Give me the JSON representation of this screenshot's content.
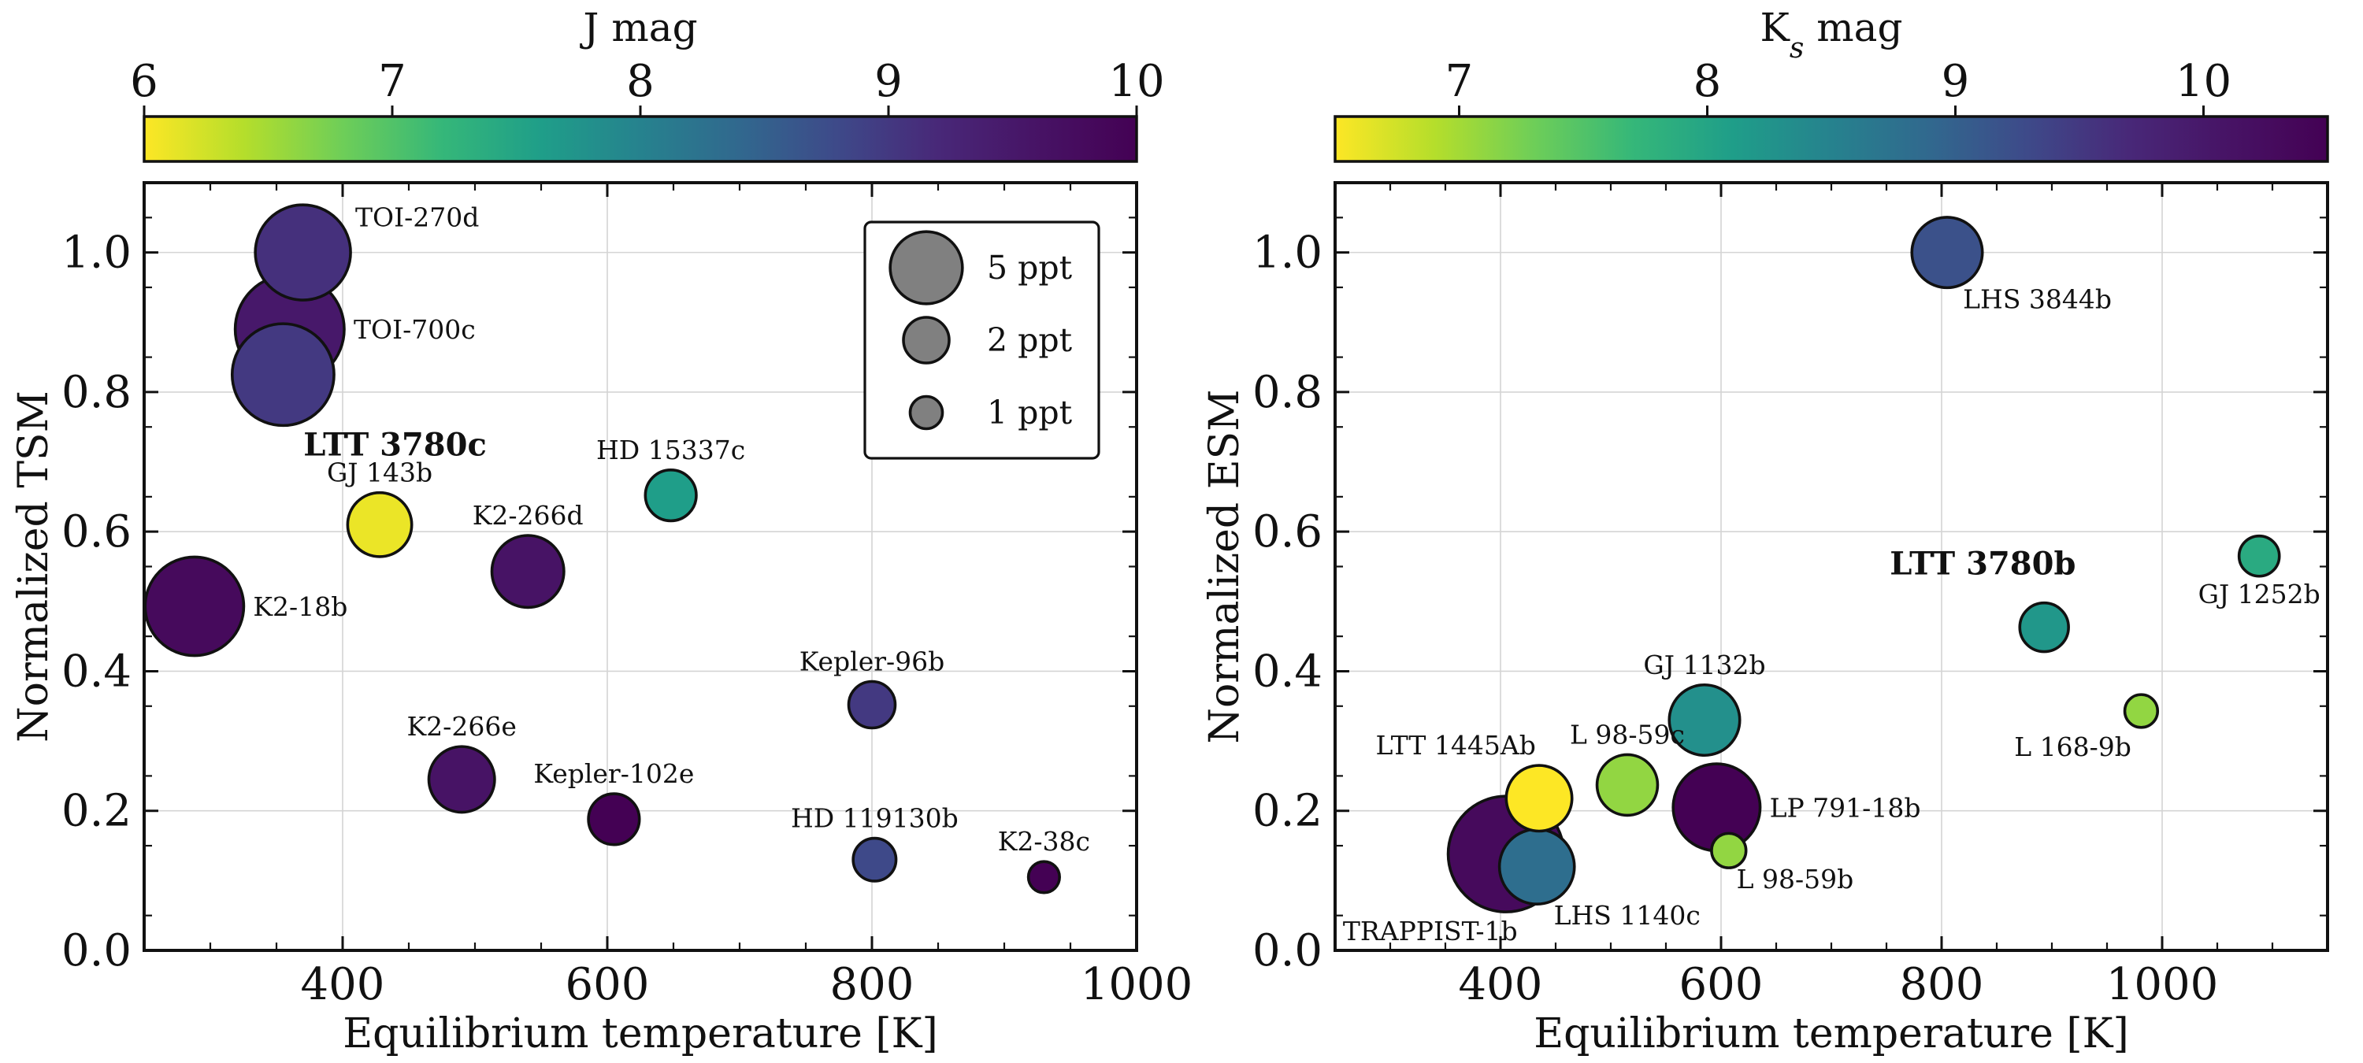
{
  "chart_data": [
    {
      "type": "scatter",
      "panel": "left",
      "xlabel": "Equilibrium temperature [K]",
      "ylabel": "Normalized TSM",
      "xlim": [
        250,
        1000
      ],
      "ylim": [
        0,
        1.1
      ],
      "xticks": [
        400,
        600,
        800,
        1000
      ],
      "yticks": [
        0.0,
        0.2,
        0.4,
        0.6,
        0.8,
        1.0
      ],
      "colorbar": {
        "title": "J mag",
        "range": [
          6,
          10
        ],
        "ticks": [
          6,
          7,
          8,
          9,
          10
        ]
      },
      "legend": {
        "position": "top-right",
        "entries": [
          {
            "label": "5 ppt",
            "value": 5
          },
          {
            "label": "2 ppt",
            "value": 2
          },
          {
            "label": "1 ppt",
            "value": 1
          }
        ]
      },
      "points": [
        {
          "name": "TOI-270d",
          "x": 370,
          "y": 1.0,
          "size": 4.2,
          "mag": 9.1,
          "label_pos": "upper-right"
        },
        {
          "name": "TOI-700c",
          "x": 360,
          "y": 0.89,
          "size": 5.5,
          "mag": 9.5,
          "label_pos": "right"
        },
        {
          "name": "LTT 3780c",
          "x": 355,
          "y": 0.825,
          "size": 4.8,
          "mag": 9.0,
          "label_pos": "lower-right",
          "bold": true
        },
        {
          "name": "GJ 143b",
          "x": 428,
          "y": 0.61,
          "size": 1.9,
          "mag": 6.1,
          "label_pos": "above"
        },
        {
          "name": "K2-266d",
          "x": 540,
          "y": 0.543,
          "size": 2.4,
          "mag": 9.6,
          "label_pos": "above"
        },
        {
          "name": "K2-18b",
          "x": 288,
          "y": 0.493,
          "size": 4.5,
          "mag": 9.8,
          "label_pos": "right"
        },
        {
          "name": "HD 15337c",
          "x": 648,
          "y": 0.652,
          "size": 1.2,
          "mag": 7.6,
          "label_pos": "above"
        },
        {
          "name": "Kepler-96b",
          "x": 800,
          "y": 0.352,
          "size": 1.0,
          "mag": 9.0,
          "label_pos": "above"
        },
        {
          "name": "K2-266e",
          "x": 490,
          "y": 0.245,
          "size": 2.0,
          "mag": 9.6,
          "label_pos": "above"
        },
        {
          "name": "Kepler-102e",
          "x": 605,
          "y": 0.188,
          "size": 1.2,
          "mag": 10.0,
          "label_pos": "above"
        },
        {
          "name": "HD 119130b",
          "x": 802,
          "y": 0.13,
          "size": 0.85,
          "mag": 8.8,
          "label_pos": "above"
        },
        {
          "name": "K2-38c",
          "x": 930,
          "y": 0.105,
          "size": 0.45,
          "mag": 10.0,
          "label_pos": "above"
        }
      ]
    },
    {
      "type": "scatter",
      "panel": "right",
      "xlabel": "Equilibrium temperature [K]",
      "ylabel": "Normalized ESM",
      "xlim": [
        250,
        1150
      ],
      "ylim": [
        0,
        1.1
      ],
      "xticks": [
        400,
        600,
        800,
        1000
      ],
      "yticks": [
        0.0,
        0.2,
        0.4,
        0.6,
        0.8,
        1.0
      ],
      "colorbar": {
        "title": "K",
        "title_sub": "s",
        "title_suffix": " mag",
        "range": [
          6.5,
          10.5
        ],
        "ticks": [
          7,
          8,
          9,
          10
        ]
      },
      "points": [
        {
          "name": "LHS 3844b",
          "x": 805,
          "y": 1.0,
          "size": 2.3,
          "mag": 9.2,
          "label_pos": "lower-right"
        },
        {
          "name": "GJ 1252b",
          "x": 1088,
          "y": 0.565,
          "size": 0.75,
          "mag": 7.9,
          "label_pos": "below"
        },
        {
          "name": "LTT 3780b",
          "x": 893,
          "y": 0.463,
          "size": 1.1,
          "mag": 8.2,
          "label_pos": "upper-left",
          "bold": true
        },
        {
          "name": "L 168-9b",
          "x": 981,
          "y": 0.343,
          "size": 0.5,
          "mag": 7.1,
          "label_pos": "lower-left"
        },
        {
          "name": "GJ 1132b",
          "x": 585,
          "y": 0.33,
          "size": 2.3,
          "mag": 8.3,
          "label_pos": "above"
        },
        {
          "name": "LTT 1445Ab",
          "x": 435,
          "y": 0.218,
          "size": 2.0,
          "mag": 6.5,
          "label_pos": "upper-left"
        },
        {
          "name": "L 98-59c",
          "x": 515,
          "y": 0.237,
          "size": 1.7,
          "mag": 7.1,
          "label_pos": "above"
        },
        {
          "name": "LP 791-18b",
          "x": 596,
          "y": 0.205,
          "size": 3.5,
          "mag": 10.6,
          "label_pos": "right"
        },
        {
          "name": "L 98-59b",
          "x": 607,
          "y": 0.143,
          "size": 0.55,
          "mag": 7.1,
          "label_pos": "lower-right"
        },
        {
          "name": "TRAPPIST-1b",
          "x": 405,
          "y": 0.138,
          "size": 6.2,
          "mag": 10.3,
          "label_pos": "lower-left"
        },
        {
          "name": "LHS 1140c",
          "x": 433,
          "y": 0.12,
          "size": 2.6,
          "mag": 8.8,
          "label_pos": "lower-right"
        }
      ]
    }
  ]
}
